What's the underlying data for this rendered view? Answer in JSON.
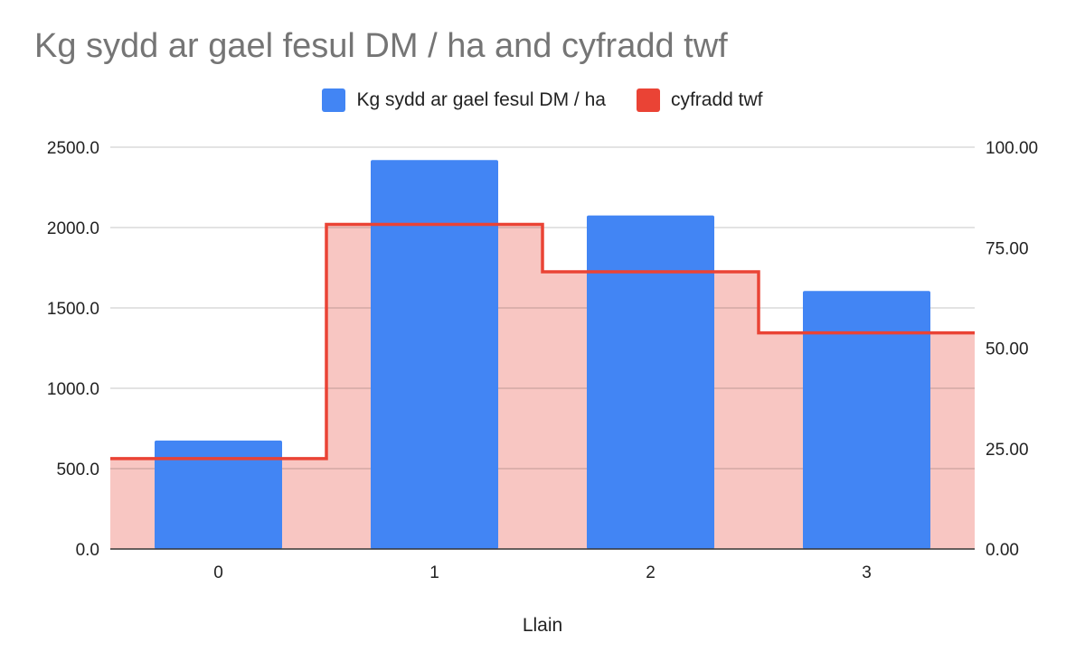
{
  "chart_data": {
    "type": "bar",
    "title": "Kg sydd ar gael fesul DM / ha and cyfradd twf",
    "xlabel": "Llain",
    "ylabel": "",
    "ylabel_right": "",
    "categories": [
      "0",
      "1",
      "2",
      "3"
    ],
    "series": [
      {
        "name": "Kg sydd ar gael fesul DM / ha",
        "type": "bar",
        "axis": "left",
        "color": "#4285f4",
        "values": [
          675,
          2420,
          2075,
          1605
        ]
      },
      {
        "name": "cyfradd twf",
        "type": "stepped-area",
        "axis": "right",
        "color": "#ea4335",
        "fill_color": "#f8c6c2",
        "values": [
          22.5,
          80.8,
          69.0,
          53.8
        ]
      }
    ],
    "ylim": [
      0,
      2500
    ],
    "ylim_right": [
      0,
      100
    ],
    "y_ticks": [
      "0.0",
      "500.0",
      "1000.0",
      "1500.0",
      "2000.0",
      "2500.0"
    ],
    "y_ticks_right": [
      "0.00",
      "25.00",
      "50.00",
      "75.00",
      "100.00"
    ],
    "grid": true,
    "legend_position": "top"
  }
}
